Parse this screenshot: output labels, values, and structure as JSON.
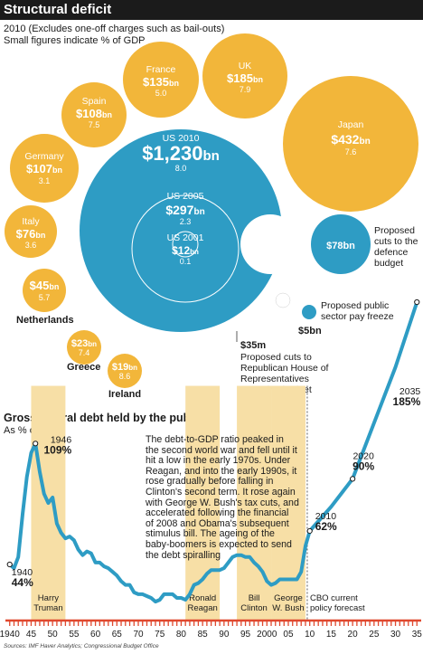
{
  "title": "Structural deficit",
  "subtitle1": "2010 (Excludes one-off charges such as bail-outs)",
  "subtitle2": "Small figures indicate % of GDP",
  "colors": {
    "yellow": "#f2b63a",
    "blue": "#2e9cc4",
    "shade": "#f7dfa6",
    "red": "#e0492f",
    "ink": "#1a1a1a"
  },
  "chart_data": [
    {
      "type": "bubble",
      "title": "Structural deficit",
      "bubbles": [
        {
          "name": "US 2010",
          "value": "$1,230bn",
          "pct": "8.0"
        },
        {
          "name": "US 2005",
          "value": "$297bn",
          "pct": "2.3"
        },
        {
          "name": "US 2001",
          "value": "$12bn",
          "pct": "0.1"
        },
        {
          "name": "France",
          "value": "$135bn",
          "pct": "5.0"
        },
        {
          "name": "UK",
          "value": "$185bn",
          "pct": "7.9"
        },
        {
          "name": "Japan",
          "value": "$432bn",
          "pct": "7.6"
        },
        {
          "name": "Spain",
          "value": "$108bn",
          "pct": "7.5"
        },
        {
          "name": "Germany",
          "value": "$107bn",
          "pct": "3.1"
        },
        {
          "name": "Italy",
          "value": "$76bn",
          "pct": "3.6"
        },
        {
          "name": "Netherlands",
          "value": "$45bn",
          "pct": "5.7"
        },
        {
          "name": "Greece",
          "value": "$23bn",
          "pct": "7.4"
        },
        {
          "name": "Ireland",
          "value": "$19bn",
          "pct": "8.6"
        }
      ],
      "proposals": [
        {
          "value": "$78bn",
          "label": "Proposed cuts to the defence budget"
        },
        {
          "value": "$5bn",
          "label": "Proposed public sector pay freeze"
        },
        {
          "value": "$35m",
          "label": "Proposed cuts to Republican House of Representatives operating budget"
        }
      ]
    },
    {
      "type": "line",
      "title": "Gross federal debt held by the public",
      "ylabel": "As % of GDP",
      "xlim": [
        1939,
        2036
      ],
      "ylim": [
        0,
        200
      ],
      "x": [
        1940,
        1941,
        1942,
        1943,
        1944,
        1945,
        1946,
        1947,
        1948,
        1949,
        1950,
        1951,
        1952,
        1953,
        1954,
        1955,
        1956,
        1957,
        1958,
        1959,
        1960,
        1961,
        1962,
        1963,
        1964,
        1965,
        1966,
        1967,
        1968,
        1969,
        1970,
        1971,
        1972,
        1973,
        1974,
        1975,
        1976,
        1977,
        1978,
        1979,
        1980,
        1981,
        1982,
        1983,
        1984,
        1985,
        1986,
        1987,
        1988,
        1989,
        1990,
        1991,
        1992,
        1993,
        1994,
        1995,
        1996,
        1997,
        1998,
        1999,
        2000,
        2001,
        2002,
        2003,
        2004,
        2005,
        2006,
        2007,
        2008,
        2009,
        2010,
        2015,
        2020,
        2025,
        2030,
        2035
      ],
      "y": [
        44,
        42,
        48,
        71,
        91,
        104,
        109,
        94,
        82,
        77,
        80,
        66,
        61,
        58,
        59,
        57,
        52,
        49,
        51,
        50,
        45,
        45,
        43,
        42,
        40,
        38,
        35,
        33,
        33,
        29,
        28,
        28,
        27,
        26,
        24,
        25,
        28,
        28,
        28,
        26,
        26,
        25,
        28,
        33,
        34,
        36,
        39,
        41,
        41,
        41,
        42,
        45,
        48,
        49,
        49,
        48,
        48,
        45,
        43,
        40,
        35,
        33,
        34,
        36,
        36,
        36,
        36,
        36,
        40,
        54,
        62,
        75,
        90,
        120,
        150,
        185
      ],
      "labels": [
        {
          "x": 1940,
          "year": "1940",
          "value": "44%"
        },
        {
          "x": 1946,
          "year": "1946",
          "value": "109%"
        },
        {
          "x": 2010,
          "year": "2010",
          "value": "62%"
        },
        {
          "x": 2020,
          "year": "2020",
          "value": "90%"
        },
        {
          "x": 2035,
          "year": "2035",
          "value": "185%"
        }
      ],
      "xticks": [
        {
          "v": 1940,
          "t": "1940"
        },
        {
          "v": 1945,
          "t": "45"
        },
        {
          "v": 1950,
          "t": "50"
        },
        {
          "v": 1955,
          "t": "55"
        },
        {
          "v": 1960,
          "t": "60"
        },
        {
          "v": 1965,
          "t": "65"
        },
        {
          "v": 1970,
          "t": "70"
        },
        {
          "v": 1975,
          "t": "75"
        },
        {
          "v": 1980,
          "t": "80"
        },
        {
          "v": 1985,
          "t": "85"
        },
        {
          "v": 1990,
          "t": "90"
        },
        {
          "v": 1995,
          "t": "95"
        },
        {
          "v": 2000,
          "t": "2000"
        },
        {
          "v": 2005,
          "t": "05"
        },
        {
          "v": 2010,
          "t": "10"
        },
        {
          "v": 2015,
          "t": "15"
        },
        {
          "v": 2020,
          "t": "20"
        },
        {
          "v": 2025,
          "t": "25"
        },
        {
          "v": 2030,
          "t": "30"
        },
        {
          "v": 2035,
          "t": "35"
        }
      ],
      "presidencies": [
        {
          "start": 1945,
          "end": 1953,
          "line1": "Harry",
          "line2": "Truman"
        },
        {
          "start": 1981,
          "end": 1989,
          "line1": "Ronald",
          "line2": "Reagan"
        },
        {
          "start": 1993,
          "end": 2001,
          "line1": "Bill",
          "line2": "Clinton"
        },
        {
          "start": 2001,
          "end": 2009,
          "line1": "George",
          "line2": "W. Bush"
        }
      ],
      "forecast_start": 2009,
      "forecast_label1": "CBO current",
      "forecast_label2": "policy forecast"
    }
  ],
  "description": "The debt-to-GDP ratio peaked in the second world war and fell until it hit a low in the early 1970s. Under Reagan, and into the early 1990s, it rose gradually before falling in Clinton's second term. It rose again with George W. Bush's tax cuts, and accelerated following the financial of 2008 and Obama's subsequent stimulus bill. The ageing of the baby-boomers is expected to send the debt spiralling",
  "source": "Sources: IMF Haver Analytics; Congressional Budget Office"
}
